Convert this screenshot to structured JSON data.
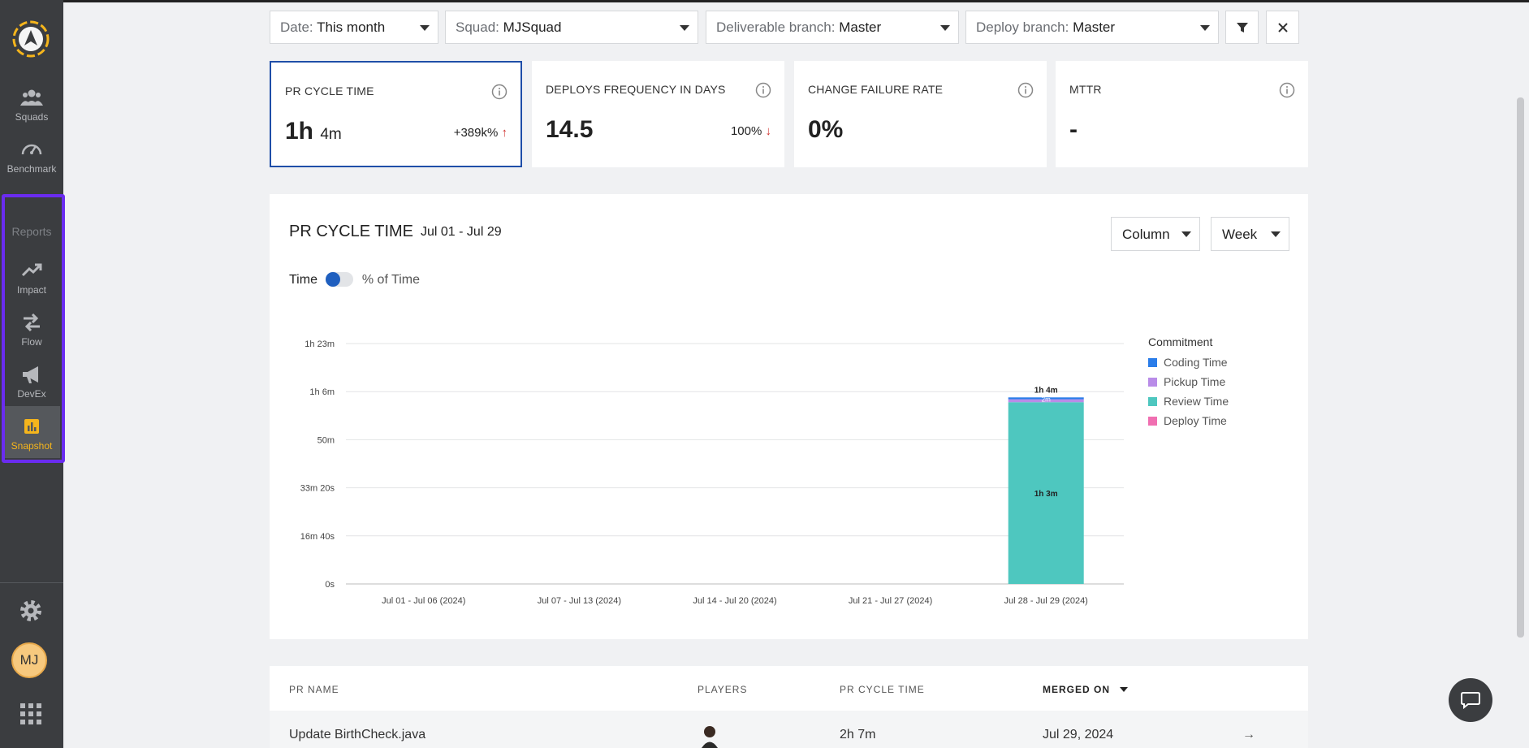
{
  "sidebar": {
    "items": [
      {
        "label": "Squads"
      },
      {
        "label": "Benchmark"
      },
      {
        "label": "Impact"
      },
      {
        "label": "Flow"
      },
      {
        "label": "DevEx"
      },
      {
        "label": "Snapshot"
      }
    ],
    "reports_label": "Reports",
    "avatar_initials": "MJ"
  },
  "filters": {
    "date": {
      "prefix": "Date:",
      "value": "This month"
    },
    "squad": {
      "prefix": "Squad:",
      "value": "MJSquad"
    },
    "deliverable": {
      "prefix": "Deliverable branch:",
      "value": "Master"
    },
    "deploy": {
      "prefix": "Deploy branch:",
      "value": "Master"
    }
  },
  "cards": [
    {
      "title": "PR CYCLE TIME",
      "value_main": "1h",
      "value_sub": "4m",
      "delta": "+389k%",
      "delta_dir": "↑"
    },
    {
      "title": "DEPLOYS FREQUENCY IN DAYS",
      "value_main": "14.5",
      "value_sub": "",
      "delta": "100%",
      "delta_dir": "↓"
    },
    {
      "title": "CHANGE FAILURE RATE",
      "value_main": "0%",
      "value_sub": "",
      "delta": "",
      "delta_dir": ""
    },
    {
      "title": "MTTR",
      "value_main": "-",
      "value_sub": "",
      "delta": "",
      "delta_dir": ""
    }
  ],
  "panel": {
    "title": "PR CYCLE TIME",
    "range": "Jul 01 - Jul 29",
    "view_select": "Column",
    "period_select": "Week",
    "toggle_left": "Time",
    "toggle_right": "% of Time"
  },
  "chart_data": {
    "type": "bar",
    "stacked": true,
    "categories": [
      "Jul 01 - Jul 06 (2024)",
      "Jul 07 - Jul 13 (2024)",
      "Jul 14 - Jul 20 (2024)",
      "Jul 21 - Jul 27 (2024)",
      "Jul 28 - Jul 29 (2024)"
    ],
    "y_ticks": [
      "0s",
      "16m 40s",
      "33m 20s",
      "50m",
      "1h 6m",
      "1h 23m"
    ],
    "ylim_seconds": [
      0,
      5000
    ],
    "legend_title": "Commitment",
    "series": [
      {
        "name": "Coding Time",
        "color": "#2b7de9",
        "values_seconds": [
          0,
          0,
          0,
          0,
          40
        ]
      },
      {
        "name": "Pickup Time",
        "color": "#b98ce8",
        "values_seconds": [
          0,
          0,
          0,
          0,
          60
        ]
      },
      {
        "name": "Review Time",
        "color": "#4ec7bf",
        "values_seconds": [
          0,
          0,
          0,
          0,
          3780
        ]
      },
      {
        "name": "Deploy Time",
        "color": "#f06fb1",
        "values_seconds": [
          0,
          0,
          0,
          0,
          0
        ]
      }
    ],
    "data_labels": {
      "total": "1h 4m",
      "segment_small": "2m",
      "segment_main": "1h 3m"
    },
    "grid": true,
    "legend_position": "right"
  },
  "table": {
    "headers": [
      "PR NAME",
      "PLAYERS",
      "PR CYCLE TIME",
      "MERGED ON"
    ],
    "rows": [
      {
        "name": "Update BirthCheck.java",
        "cycle": "2h 7m",
        "merged": "Jul 29, 2024"
      }
    ]
  }
}
